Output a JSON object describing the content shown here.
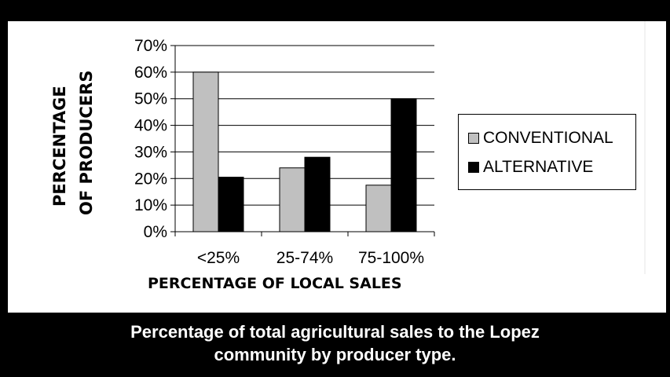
{
  "chart_data": {
    "type": "bar",
    "categories": [
      "<25%",
      "25-74%",
      "75-100%"
    ],
    "series": [
      {
        "name": "CONVENTIONAL",
        "values": [
          60,
          24,
          17.5
        ],
        "color": "#c0c0c0"
      },
      {
        "name": "ALTERNATIVE",
        "values": [
          20.5,
          28,
          50
        ],
        "color": "#000000"
      }
    ],
    "yticks": [
      "0%",
      "10%",
      "20%",
      "30%",
      "40%",
      "50%",
      "60%",
      "70%"
    ],
    "ylim": [
      0,
      70
    ],
    "ylabel_lines": [
      "PERCENTAGE",
      "OF PRODUCERS"
    ],
    "xlabel": "PERCENTAGE OF LOCAL SALES",
    "grid": "horizontal",
    "legend_position": "right"
  },
  "caption_lines": [
    "Percentage of total agricultural sales to the Lopez",
    "community by producer type."
  ]
}
